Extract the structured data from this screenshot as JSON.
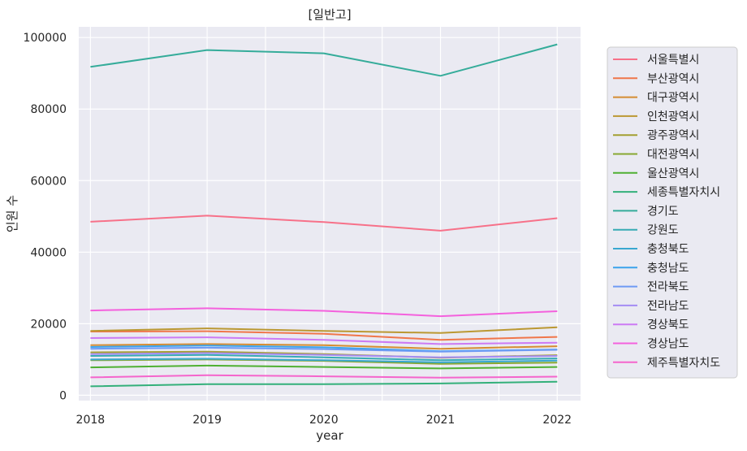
{
  "chart_data": {
    "type": "line",
    "title": "[일반고]",
    "xlabel": "year",
    "ylabel": "인원 수",
    "x": [
      2018,
      2019,
      2020,
      2021,
      2022
    ],
    "ylim": [
      -1500,
      103000
    ],
    "yticks": [
      0,
      20000,
      40000,
      60000,
      80000,
      100000
    ],
    "grid": true,
    "legend_position": "right",
    "series": [
      {
        "name": "서울특별시",
        "color": "#f77189",
        "values": [
          48500,
          50200,
          48400,
          46000,
          49500
        ]
      },
      {
        "name": "부산광역시",
        "color": "#f0764a",
        "values": [
          17800,
          17900,
          17200,
          15500,
          16300
        ]
      },
      {
        "name": "대구광역시",
        "color": "#d58c32",
        "values": [
          14000,
          14300,
          14000,
          13000,
          13700
        ]
      },
      {
        "name": "인천광역시",
        "color": "#bb9832",
        "values": [
          18000,
          18700,
          18000,
          17400,
          19000
        ]
      },
      {
        "name": "광주광역시",
        "color": "#a39f31",
        "values": [
          12000,
          12200,
          11500,
          10500,
          11200
        ]
      },
      {
        "name": "대전광역시",
        "color": "#88a831",
        "values": [
          9800,
          10000,
          9600,
          8800,
          9100
        ]
      },
      {
        "name": "울산광역시",
        "color": "#4fb032",
        "values": [
          7800,
          8300,
          7900,
          7500,
          7900
        ]
      },
      {
        "name": "세종특별자치시",
        "color": "#33b07a",
        "values": [
          2500,
          3100,
          3100,
          3300,
          3800
        ]
      },
      {
        "name": "경기도",
        "color": "#35ac9a",
        "values": [
          91800,
          96500,
          95600,
          89300,
          98100
        ]
      },
      {
        "name": "강원도",
        "color": "#37abb4",
        "values": [
          11000,
          11300,
          10600,
          9800,
          10300
        ]
      },
      {
        "name": "충청북도",
        "color": "#39a7d0",
        "values": [
          10000,
          10200,
          9800,
          9200,
          9700
        ]
      },
      {
        "name": "충청남도",
        "color": "#3ba3ec",
        "values": [
          13500,
          13900,
          13400,
          12300,
          12800
        ]
      },
      {
        "name": "전라북도",
        "color": "#6e9af4",
        "values": [
          13000,
          13300,
          12900,
          12200,
          12700
        ]
      },
      {
        "name": "전라남도",
        "color": "#a48cf4",
        "values": [
          11500,
          11800,
          11300,
          10600,
          11000
        ]
      },
      {
        "name": "경상북도",
        "color": "#cc7af4",
        "values": [
          16000,
          16200,
          15500,
          14300,
          14700
        ]
      },
      {
        "name": "경상남도",
        "color": "#f461dd",
        "values": [
          23700,
          24300,
          23600,
          22100,
          23500
        ]
      },
      {
        "name": "제주특별자치도",
        "color": "#f565cc",
        "values": [
          5000,
          5600,
          5300,
          4900,
          5200
        ]
      }
    ]
  }
}
